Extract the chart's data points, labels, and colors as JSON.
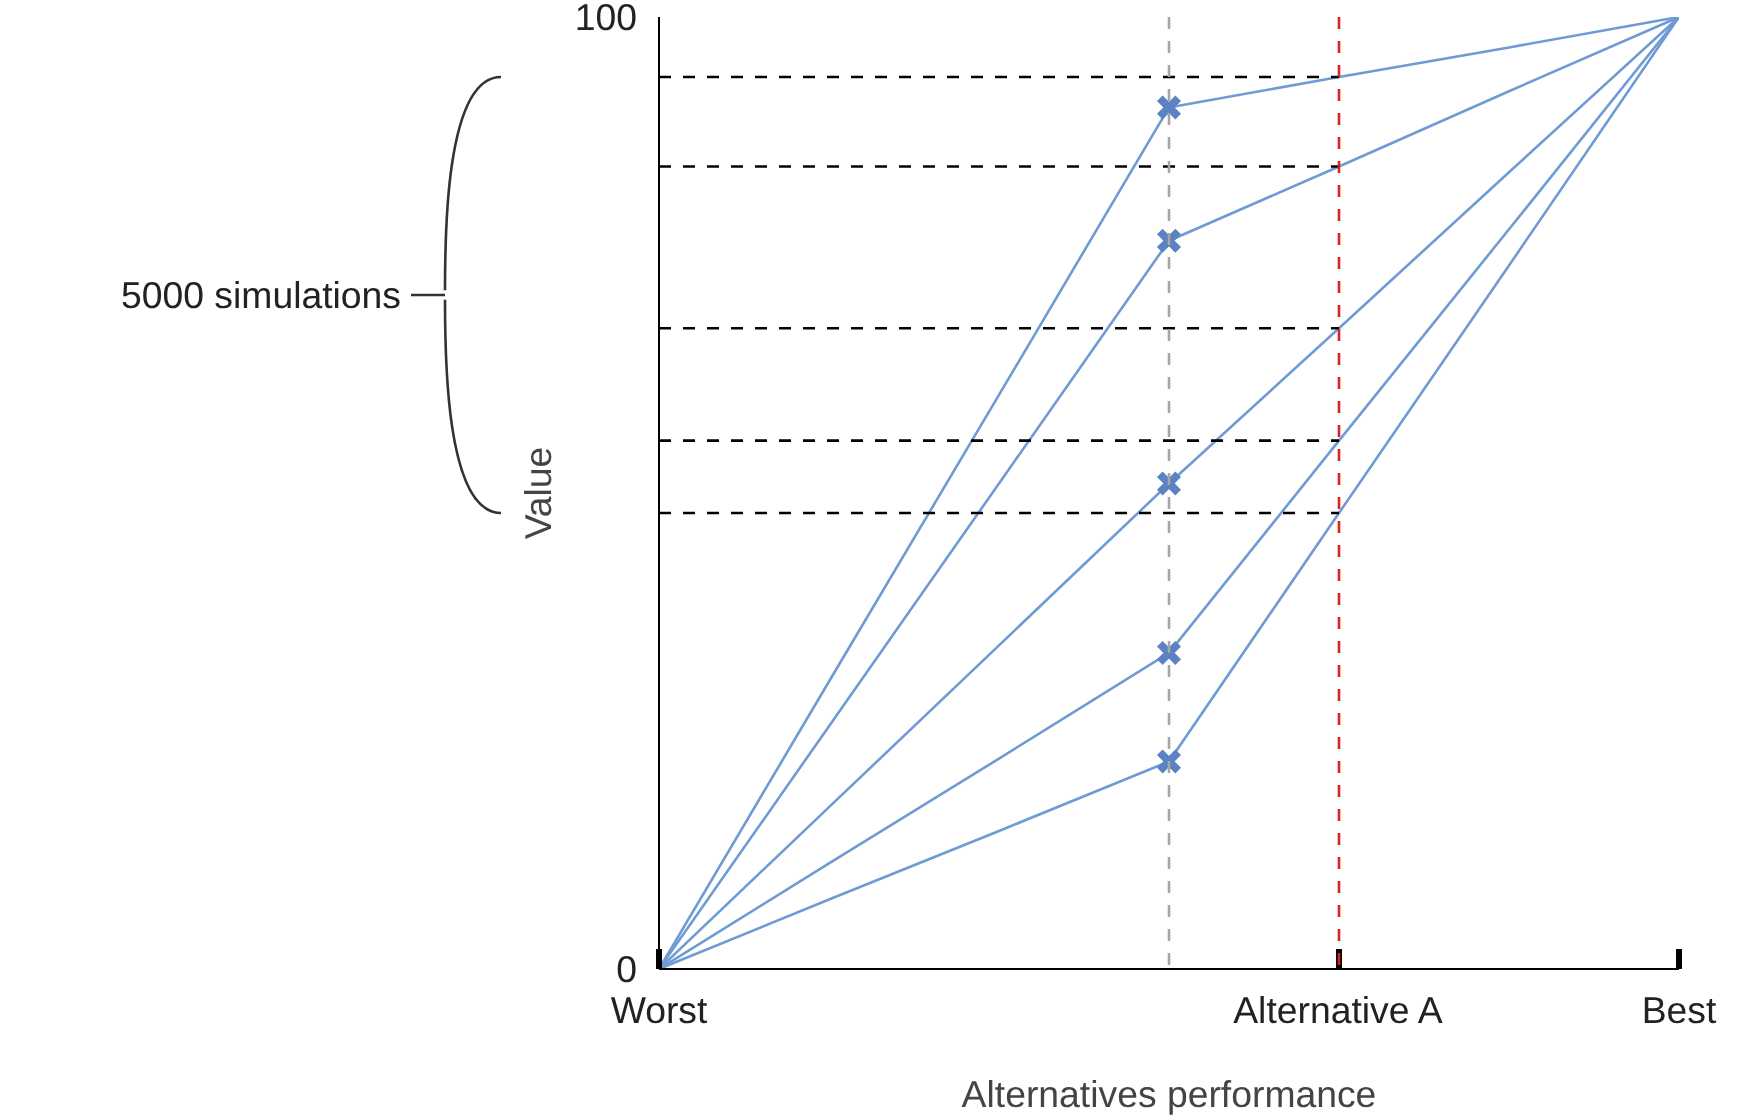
{
  "chart_data": {
    "type": "line",
    "xlabel": "Alternatives performance",
    "ylabel": "Value",
    "categories": [
      "Worst",
      null,
      null,
      null,
      "Alternative A",
      null,
      "Best"
    ],
    "ylim": [
      0,
      100
    ],
    "yticks": [
      0,
      100
    ],
    "series": [
      {
        "color": "#6f9bd4",
        "values": [
          0,
          30.2,
          60.3,
          90.5,
          93.7,
          96.8,
          100
        ]
      },
      {
        "color": "#6f9bd4",
        "values": [
          0,
          25.5,
          51,
          76.5,
          84.3,
          92.2,
          100
        ]
      },
      {
        "color": "#6f9bd4",
        "values": [
          0,
          17,
          34,
          51,
          67.3,
          83.7,
          100
        ]
      },
      {
        "color": "#6f9bd4",
        "values": [
          0,
          11.1,
          22.1,
          33.2,
          55.5,
          77.7,
          100
        ]
      },
      {
        "color": "#6f9bd4",
        "values": [
          0,
          7.3,
          14.5,
          21.8,
          47.9,
          73.9,
          100
        ]
      },
      {
        "type": "scatter",
        "color": "#5b82c2",
        "marker": "cross",
        "values": [
          null,
          null,
          null,
          90.5,
          null,
          null,
          null
        ]
      },
      {
        "type": "scatter",
        "color": "#5b82c2",
        "marker": "cross",
        "values": [
          null,
          null,
          null,
          76.5,
          null,
          null,
          null
        ]
      },
      {
        "type": "scatter",
        "color": "#5b82c2",
        "marker": "cross",
        "values": [
          null,
          null,
          null,
          51,
          null,
          null,
          null
        ]
      },
      {
        "type": "scatter",
        "color": "#5b82c2",
        "marker": "cross",
        "values": [
          null,
          null,
          null,
          33.2,
          null,
          null,
          null
        ]
      },
      {
        "type": "scatter",
        "color": "#5b82c2",
        "marker": "cross",
        "values": [
          null,
          null,
          null,
          21.8,
          null,
          null,
          null
        ]
      },
      {
        "type": "line",
        "color": "#000000",
        "line_style": "dashed",
        "values": [
          93.7,
          93.7,
          93.7,
          93.7,
          93.7,
          null,
          null
        ]
      },
      {
        "type": "line",
        "color": "#000000",
        "line_style": "dashed",
        "values": [
          84.3,
          84.3,
          84.3,
          84.3,
          84.3,
          null,
          null
        ]
      },
      {
        "type": "line",
        "color": "#000000",
        "line_style": "dashed",
        "values": [
          67.3,
          67.3,
          67.3,
          67.3,
          67.3,
          null,
          null
        ]
      },
      {
        "type": "line",
        "color": "#000000",
        "line_style": "dashed",
        "values": [
          55.5,
          55.5,
          55.5,
          55.5,
          55.5,
          null,
          null
        ]
      },
      {
        "type": "line",
        "color": "#000000",
        "line_style": "dashed",
        "values": [
          47.9,
          47.9,
          47.9,
          47.9,
          47.9,
          null,
          null
        ]
      }
    ],
    "ref_lines": [
      {
        "axis": "x",
        "value": "Alternative A",
        "color": "#e02020",
        "line_style": "dashed"
      }
    ],
    "annotations": [
      "5000 simulations"
    ]
  }
}
